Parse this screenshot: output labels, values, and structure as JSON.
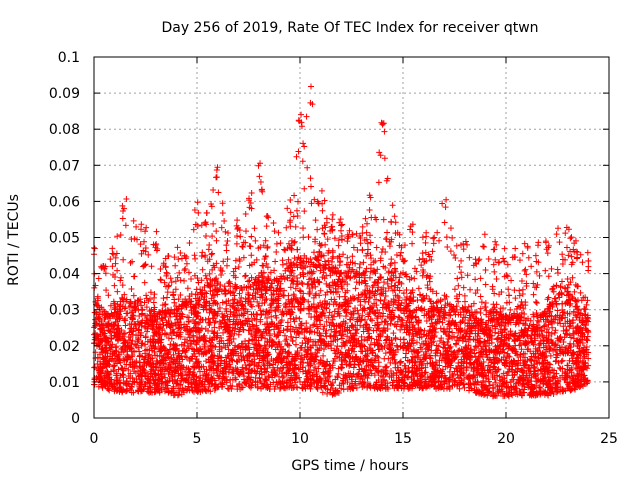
{
  "chart_data": {
    "type": "scatter",
    "title": "Day 256 of 2019, Rate Of TEC Index for receiver qtwn",
    "xlabel": "GPS time / hours",
    "ylabel": "ROTI / TECUs",
    "xlim": [
      0,
      25
    ],
    "ylim": [
      0,
      0.1
    ],
    "x_ticks": [
      "0",
      "5",
      "10",
      "15",
      "20",
      "25"
    ],
    "y_ticks": [
      "0",
      "0.01",
      "0.02",
      "0.03",
      "0.04",
      "0.05",
      "0.06",
      "0.07",
      "0.08",
      "0.09",
      "0.1"
    ],
    "grid": true,
    "marker": "+",
    "series": [
      {
        "name": "ROTI",
        "color": "#ff0000",
        "envelope": {
          "hours": [
            0,
            0.5,
            1,
            1.5,
            2,
            2.5,
            3,
            3.5,
            4,
            4.5,
            5,
            5.5,
            6,
            6.5,
            7,
            7.5,
            8,
            8.5,
            9,
            9.5,
            10,
            10.5,
            11,
            11.5,
            12,
            12.5,
            13,
            13.5,
            14,
            14.5,
            15,
            15.5,
            16,
            16.5,
            17,
            17.5,
            18,
            18.5,
            19,
            19.5,
            20,
            20.5,
            21,
            21.5,
            22,
            22.5,
            23,
            23.5,
            24
          ],
          "lower": [
            0.009,
            0.008,
            0.007,
            0.007,
            0.007,
            0.007,
            0.007,
            0.007,
            0.006,
            0.007,
            0.007,
            0.007,
            0.008,
            0.008,
            0.008,
            0.008,
            0.008,
            0.008,
            0.008,
            0.008,
            0.008,
            0.008,
            0.007,
            0.006,
            0.007,
            0.008,
            0.008,
            0.008,
            0.008,
            0.008,
            0.008,
            0.008,
            0.008,
            0.008,
            0.008,
            0.008,
            0.008,
            0.007,
            0.006,
            0.006,
            0.006,
            0.006,
            0.006,
            0.006,
            0.006,
            0.007,
            0.007,
            0.008,
            0.009
          ],
          "bulk_upper": [
            0.03,
            0.028,
            0.03,
            0.034,
            0.032,
            0.03,
            0.029,
            0.03,
            0.032,
            0.031,
            0.032,
            0.036,
            0.038,
            0.035,
            0.036,
            0.036,
            0.038,
            0.038,
            0.038,
            0.042,
            0.044,
            0.046,
            0.044,
            0.042,
            0.04,
            0.04,
            0.04,
            0.04,
            0.042,
            0.04,
            0.036,
            0.034,
            0.033,
            0.032,
            0.032,
            0.031,
            0.03,
            0.028,
            0.03,
            0.029,
            0.028,
            0.028,
            0.028,
            0.028,
            0.03,
            0.034,
            0.035,
            0.03,
            0.028
          ],
          "peak": [
            0.048,
            0.044,
            0.05,
            0.062,
            0.055,
            0.054,
            0.052,
            0.045,
            0.048,
            0.046,
            0.061,
            0.058,
            0.07,
            0.052,
            0.056,
            0.062,
            0.071,
            0.058,
            0.052,
            0.06,
            0.086,
            0.092,
            0.064,
            0.058,
            0.057,
            0.052,
            0.053,
            0.062,
            0.086,
            0.06,
            0.049,
            0.055,
            0.052,
            0.052,
            0.061,
            0.05,
            0.05,
            0.048,
            0.052,
            0.049,
            0.047,
            0.047,
            0.05,
            0.049,
            0.052,
            0.054,
            0.053,
            0.05,
            0.046
          ]
        }
      }
    ]
  }
}
